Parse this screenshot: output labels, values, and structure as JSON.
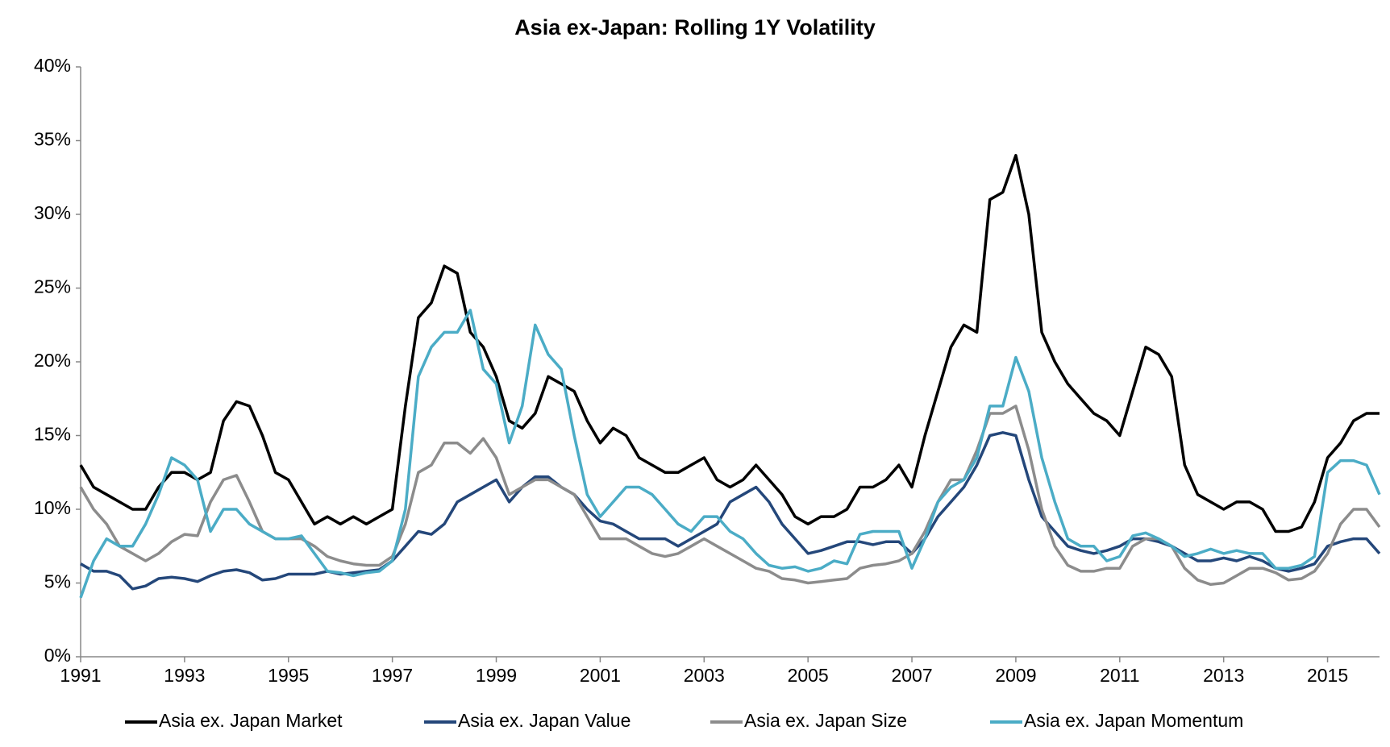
{
  "chart_data": {
    "type": "line",
    "title": "Asia ex-Japan: Rolling 1Y Volatility",
    "x": [
      1991,
      1991.25,
      1991.5,
      1991.75,
      1992,
      1992.25,
      1992.5,
      1992.75,
      1993,
      1993.25,
      1993.5,
      1993.75,
      1994,
      1994.25,
      1994.5,
      1994.75,
      1995,
      1995.25,
      1995.5,
      1995.75,
      1996,
      1996.25,
      1996.5,
      1996.75,
      1997,
      1997.25,
      1997.5,
      1997.75,
      1998,
      1998.25,
      1998.5,
      1998.75,
      1999,
      1999.25,
      1999.5,
      1999.75,
      2000,
      2000.25,
      2000.5,
      2000.75,
      2001,
      2001.25,
      2001.5,
      2001.75,
      2002,
      2002.25,
      2002.5,
      2002.75,
      2003,
      2003.25,
      2003.5,
      2003.75,
      2004,
      2004.25,
      2004.5,
      2004.75,
      2005,
      2005.25,
      2005.5,
      2005.75,
      2006,
      2006.25,
      2006.5,
      2006.75,
      2007,
      2007.25,
      2007.5,
      2007.75,
      2008,
      2008.25,
      2008.5,
      2008.75,
      2009,
      2009.25,
      2009.5,
      2009.75,
      2010,
      2010.25,
      2010.5,
      2010.75,
      2011,
      2011.25,
      2011.5,
      2011.75,
      2012,
      2012.25,
      2012.5,
      2012.75,
      2013,
      2013.25,
      2013.5,
      2013.75,
      2014,
      2014.25,
      2014.5,
      2014.75,
      2015,
      2015.25,
      2015.5,
      2015.75,
      2016
    ],
    "series": [
      {
        "name": "Asia ex. Japan Market",
        "color": "#000000",
        "values": [
          13,
          11.5,
          11,
          10.5,
          10,
          10,
          11.5,
          12.5,
          12.5,
          12,
          12.5,
          16,
          17.3,
          17,
          15,
          12.5,
          12,
          10.5,
          9,
          9.5,
          9,
          9.5,
          9,
          9.5,
          10,
          17,
          23,
          24,
          26.5,
          26,
          22,
          21,
          19,
          16,
          15.5,
          16.5,
          19,
          18.5,
          18,
          16,
          14.5,
          15.5,
          15,
          13.5,
          13,
          12.5,
          12.5,
          13,
          13.5,
          12,
          11.5,
          12,
          13,
          12,
          11,
          9.5,
          9,
          9.5,
          9.5,
          10,
          11.5,
          11.5,
          12,
          13,
          11.5,
          15,
          18,
          21,
          22.5,
          22,
          31,
          31.5,
          34,
          30,
          22,
          20,
          18.5,
          17.5,
          16.5,
          16,
          15,
          18,
          21,
          20.5,
          19,
          13,
          11,
          10.5,
          10,
          10.5,
          10.5,
          10,
          8.5,
          8.5,
          8.8,
          10.5,
          13.5,
          14.5,
          16,
          16.5,
          16.5
        ]
      },
      {
        "name": "Asia ex. Japan Value",
        "color": "#24477a",
        "values": [
          6.3,
          5.8,
          5.8,
          5.5,
          4.6,
          4.8,
          5.3,
          5.4,
          5.3,
          5.1,
          5.5,
          5.8,
          5.9,
          5.7,
          5.2,
          5.3,
          5.6,
          5.6,
          5.6,
          5.8,
          5.6,
          5.7,
          5.8,
          5.9,
          6.5,
          7.5,
          8.5,
          8.3,
          9,
          10.5,
          11,
          11.5,
          12,
          10.5,
          11.5,
          12.2,
          12.2,
          11.5,
          11,
          10,
          9.2,
          9,
          8.5,
          8,
          8,
          8,
          7.5,
          8,
          8.5,
          9,
          10.5,
          11,
          11.5,
          10.5,
          9,
          8,
          7,
          7.2,
          7.5,
          7.8,
          7.8,
          7.6,
          7.8,
          7.8,
          7,
          8,
          9.5,
          10.5,
          11.5,
          13,
          15,
          15.2,
          15,
          12,
          9.5,
          8.5,
          7.5,
          7.2,
          7,
          7.2,
          7.5,
          8,
          8,
          7.8,
          7.5,
          7,
          6.5,
          6.5,
          6.7,
          6.5,
          6.8,
          6.5,
          6,
          5.8,
          6,
          6.3,
          7.5,
          7.8,
          8,
          8,
          7
        ]
      },
      {
        "name": "Asia ex. Japan Size",
        "color": "#8c8c8c",
        "values": [
          11.5,
          10,
          9,
          7.5,
          7,
          6.5,
          7,
          7.8,
          8.3,
          8.2,
          10.5,
          12,
          12.3,
          10.5,
          8.5,
          8,
          8,
          8,
          7.5,
          6.8,
          6.5,
          6.3,
          6.2,
          6.2,
          6.8,
          9,
          12.5,
          13,
          14.5,
          14.5,
          13.8,
          14.8,
          13.5,
          11,
          11.5,
          12,
          12,
          11.5,
          11,
          9.5,
          8,
          8,
          8,
          7.5,
          7,
          6.8,
          7,
          7.5,
          8,
          7.5,
          7,
          6.5,
          6,
          5.8,
          5.3,
          5.2,
          5,
          5.1,
          5.2,
          5.3,
          6,
          6.2,
          6.3,
          6.5,
          7,
          8.5,
          10.5,
          12,
          12,
          14,
          16.5,
          16.5,
          17,
          14,
          10,
          7.5,
          6.2,
          5.8,
          5.8,
          6,
          6,
          7.5,
          8,
          8,
          7.5,
          6,
          5.2,
          4.9,
          5,
          5.5,
          6,
          6,
          5.7,
          5.2,
          5.3,
          5.8,
          7,
          9,
          10,
          10,
          8.8
        ]
      },
      {
        "name": "Asia ex. Japan Momentum",
        "color": "#4bacc6",
        "values": [
          4,
          6.5,
          8,
          7.5,
          7.5,
          9,
          11,
          13.5,
          13,
          12,
          8.5,
          10,
          10,
          9,
          8.5,
          8,
          8,
          8.2,
          7,
          5.8,
          5.7,
          5.5,
          5.7,
          5.8,
          6.5,
          10,
          19,
          21,
          22,
          22,
          23.5,
          19.5,
          18.5,
          14.5,
          17,
          22.5,
          20.5,
          19.5,
          15,
          11,
          9.5,
          10.5,
          11.5,
          11.5,
          11,
          10,
          9,
          8.5,
          9.5,
          9.5,
          8.5,
          8,
          7,
          6.2,
          6,
          6.1,
          5.8,
          6,
          6.5,
          6.3,
          8.3,
          8.5,
          8.5,
          8.5,
          6,
          8,
          10.5,
          11.5,
          12,
          13.5,
          17,
          17,
          20.3,
          18,
          13.5,
          10.5,
          8,
          7.5,
          7.5,
          6.5,
          6.8,
          8.2,
          8.4,
          8,
          7.5,
          6.8,
          7,
          7.3,
          7,
          7.2,
          7,
          7,
          6,
          6,
          6.2,
          6.8,
          12.5,
          13.3,
          13.3,
          13,
          11
        ]
      }
    ],
    "xlim": [
      1991,
      2016
    ],
    "xticks": [
      1991,
      1993,
      1995,
      1997,
      1999,
      2001,
      2003,
      2005,
      2007,
      2009,
      2011,
      2013,
      2015
    ],
    "ylim": [
      0,
      40
    ],
    "yticks": [
      {
        "value": 0,
        "label": "0%"
      },
      {
        "value": 5,
        "label": "5%"
      },
      {
        "value": 10,
        "label": "10%"
      },
      {
        "value": 15,
        "label": "15%"
      },
      {
        "value": 20,
        "label": "20%"
      },
      {
        "value": 25,
        "label": "25%"
      },
      {
        "value": 30,
        "label": "30%"
      },
      {
        "value": 35,
        "label": "35%"
      },
      {
        "value": 40,
        "label": "40%"
      }
    ],
    "grid": false,
    "legend": "bottom"
  }
}
